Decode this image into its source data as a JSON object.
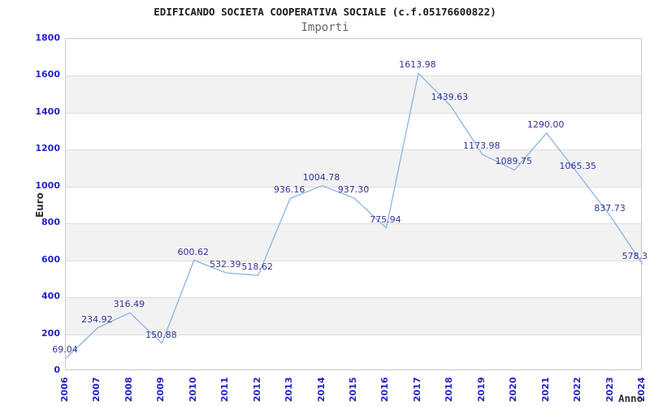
{
  "header": {
    "title": "EDIFICANDO SOCIETA COOPERATIVA SOCIALE (c.f.05176600822)",
    "subtitle": "Importi"
  },
  "chart_data": {
    "type": "line",
    "title": "EDIFICANDO SOCIETA COOPERATIVA SOCIALE (c.f.05176600822)",
    "subtitle": "Importi",
    "xlabel": "Anno",
    "ylabel": "Euro",
    "categories": [
      "2006",
      "2007",
      "2008",
      "2009",
      "2010",
      "2011",
      "2012",
      "2013",
      "2014",
      "2015",
      "2016",
      "2017",
      "2018",
      "2019",
      "2020",
      "2021",
      "2022",
      "2023",
      "2024"
    ],
    "values": [
      69.04,
      234.92,
      316.49,
      150.88,
      600.62,
      532.39,
      518.62,
      936.16,
      1004.78,
      937.3,
      775.94,
      1613.98,
      1439.63,
      1173.98,
      1089.75,
      1290.0,
      1065.35,
      837.73,
      578.3
    ],
    "point_labels": [
      "69.04",
      "234.92",
      "316.49",
      "150.88",
      "600.62",
      "532.39",
      "518.62",
      "936.16",
      "1004.78",
      "937.30",
      "775.94",
      "1613.98",
      "1439.63",
      "1173.98",
      "1089.75",
      "1290.00",
      "1065.35",
      "837.73",
      "578.3"
    ],
    "ylim": [
      0,
      1800
    ],
    "ytick_step": 200,
    "grid": true,
    "legend_position": "none",
    "colors": {
      "line": "#87b5e6",
      "tick_label": "#2222cc",
      "point_label": "#333399",
      "band": "#f2f2f2",
      "grid_line": "#dedede",
      "plot_border": "#c9c9c9",
      "title": "#1a1a1a",
      "subtitle": "#666666",
      "axis_title": "#333333"
    }
  }
}
